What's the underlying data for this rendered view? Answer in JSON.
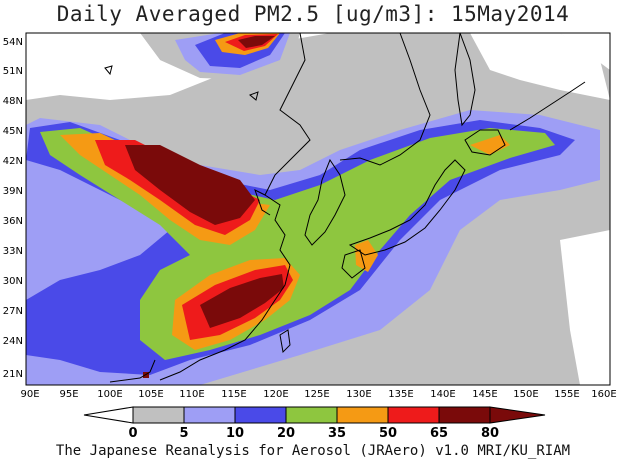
{
  "title": "Daily Averaged PM2.5 [ug/m3]: 15May2014",
  "footer": "The Japanese Reanalysis for Aerosol (JRAero) v1.0 MRI/KU_RIAM",
  "map": {
    "lat_labels": [
      "54N",
      "51N",
      "48N",
      "45N",
      "42N",
      "39N",
      "36N",
      "33N",
      "30N",
      "27N",
      "24N",
      "21N"
    ],
    "lon_labels": [
      "90E",
      "95E",
      "100E",
      "105E",
      "110E",
      "115E",
      "120E",
      "125E",
      "130E",
      "135E",
      "140E",
      "145E",
      "150E",
      "155E",
      "160E"
    ],
    "lon_range": [
      90,
      160
    ],
    "lat_range": [
      20,
      55
    ]
  },
  "colorbar": {
    "ticks": [
      "0",
      "5",
      "10",
      "20",
      "35",
      "50",
      "65",
      "80"
    ],
    "colors": [
      "#ffffff",
      "#c0c0c0",
      "#9e9ef5",
      "#4a4ae8",
      "#8ec63f",
      "#f59a14",
      "#ee1b1b",
      "#7a0a0a"
    ]
  },
  "colors": {
    "level_5": "#c0c0c0",
    "level_10": "#9e9ef5",
    "level_20": "#4a4ae8",
    "level_35": "#8ec63f",
    "level_50": "#f59a14",
    "level_65": "#ee1b1b",
    "level_80": "#7a0a0a",
    "coastline": "#000000"
  }
}
